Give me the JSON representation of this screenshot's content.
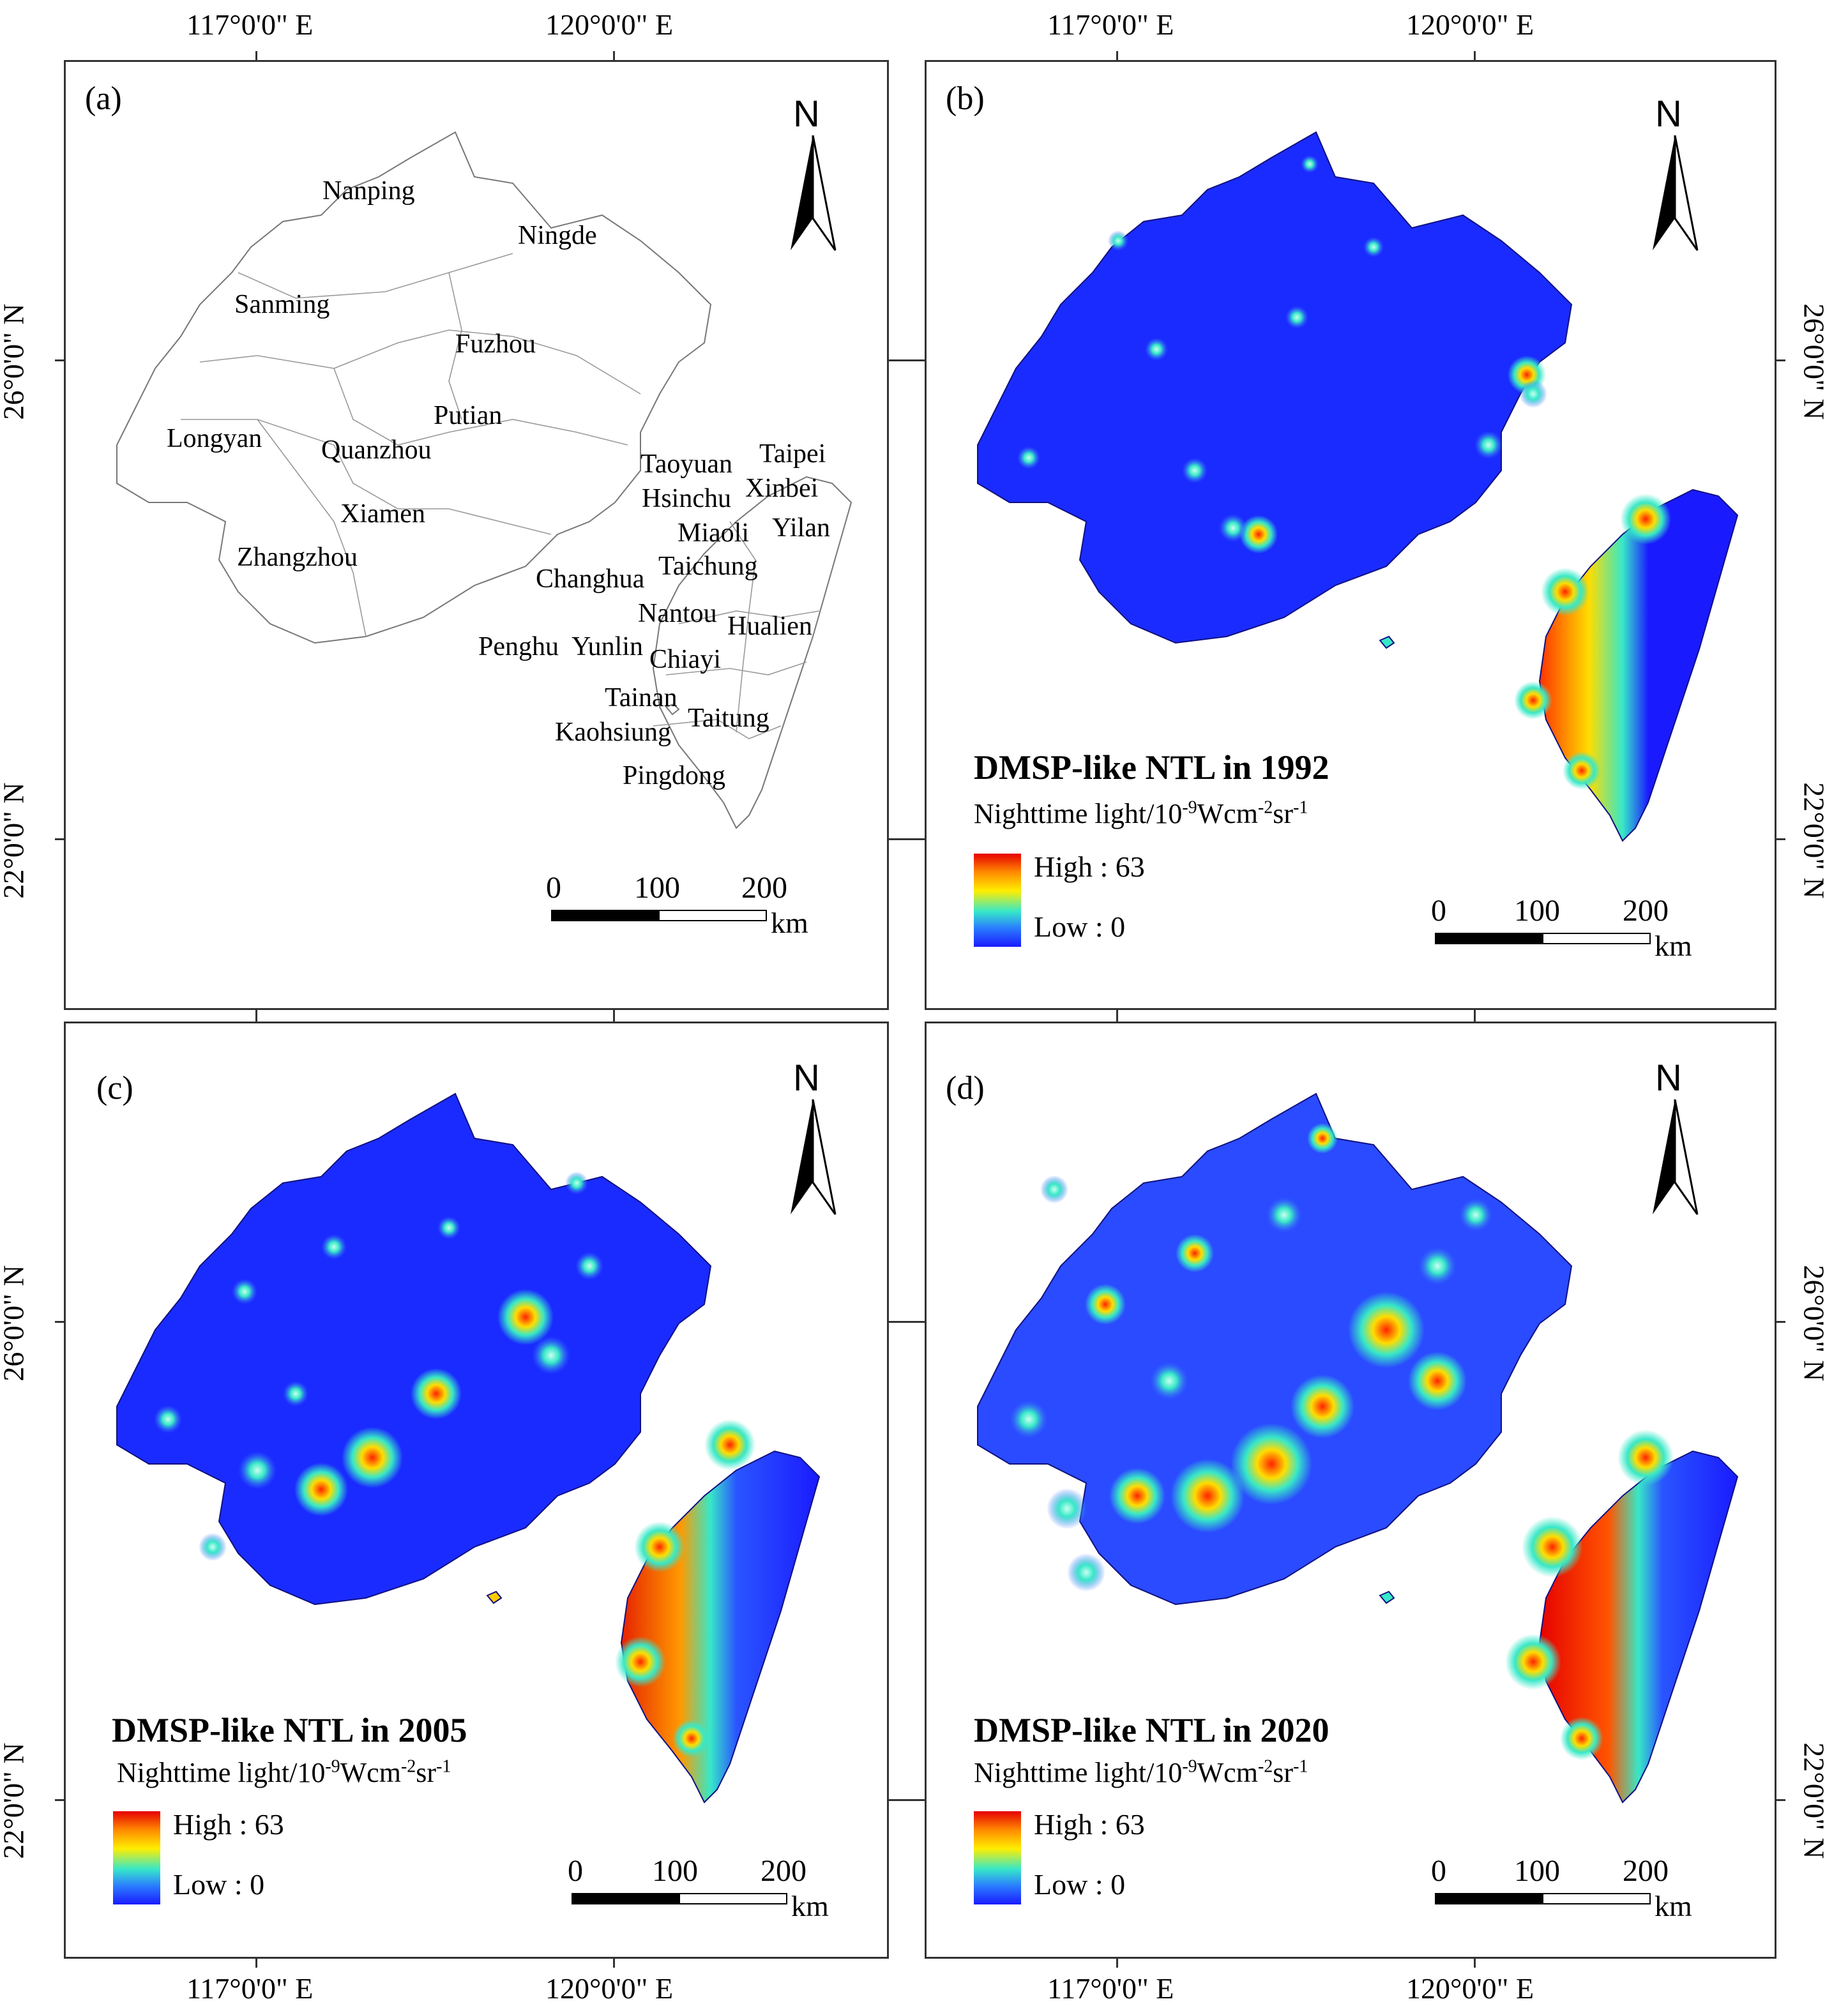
{
  "figure": {
    "lon_labels": [
      "117°0'0\" E",
      "120°0'0\" E"
    ],
    "lat_labels": [
      "26°0'0\" N",
      "22°0'0\" N"
    ],
    "north_label": "N",
    "scale": {
      "ticks": [
        "0",
        "100",
        "200"
      ],
      "unit": "km"
    }
  },
  "panels": {
    "a": {
      "label": "(a)",
      "cities": [
        "Nanping",
        "Ningde",
        "Sanming",
        "Fuzhou",
        "Putian",
        "Longyan",
        "Quanzhou",
        "Xiamen",
        "Zhangzhou",
        "Taoyuan",
        "Taipei",
        "Hsinchu",
        "Xinbei",
        "Miaoli",
        "Yilan",
        "Changhua",
        "Taichung",
        "Nantou",
        "Hualien",
        "Penghu",
        "Yunlin",
        "Chiayi",
        "Tainan",
        "Taitung",
        "Kaohsiung",
        "Pingdong"
      ]
    },
    "b": {
      "label": "(b)",
      "title": "DMSP-like NTL in 1992",
      "year": 1992
    },
    "c": {
      "label": "(c)",
      "title": "DMSP-like NTL in 2005",
      "year": 2005
    },
    "d": {
      "label": "(d)",
      "title": "DMSP-like NTL in 2020",
      "year": 2020
    }
  },
  "legend": {
    "unit_prefix": "Nighttime light/10",
    "unit_exp1": "-9",
    "unit_mid": "Wcm",
    "unit_exp2": "-2",
    "unit_mid2": "sr",
    "unit_exp3": "-1",
    "high": "High : 63",
    "low": "Low : 0",
    "high_value": 63,
    "low_value": 0
  },
  "colors": {
    "low": "#1a1aff",
    "mid": "#37e8c8",
    "high": "#e60000",
    "border": "#333333"
  }
}
